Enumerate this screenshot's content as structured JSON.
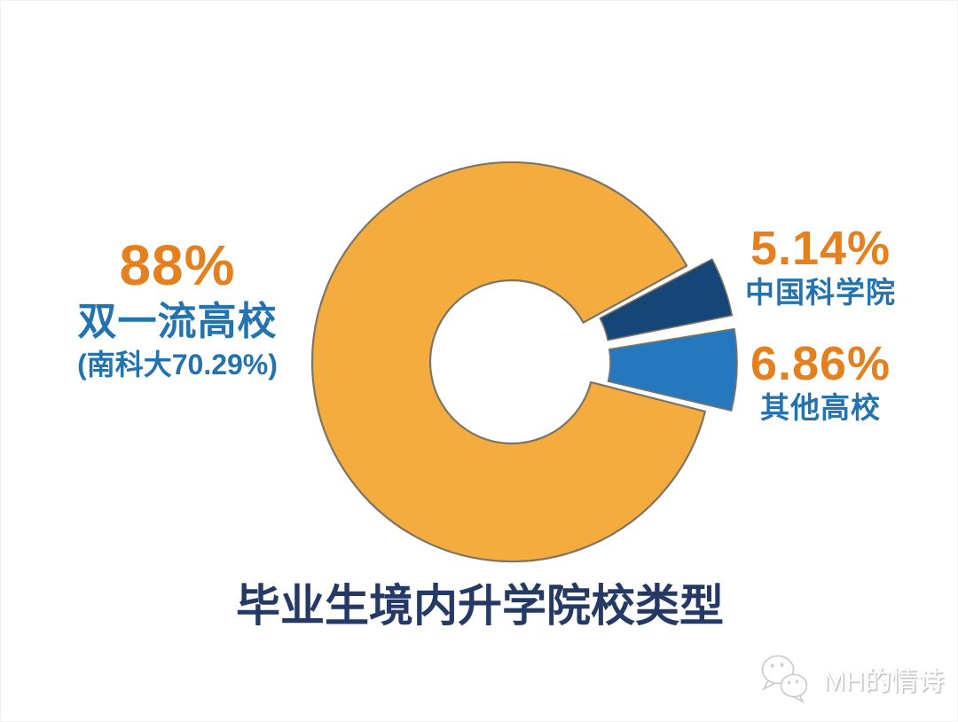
{
  "page": {
    "background": "#FFFFFF",
    "watermark": {
      "text": "MH的情诗",
      "icon": "wechat-logo-icon"
    }
  },
  "chart_data": {
    "type": "pie",
    "variant": "exploded-donut",
    "title": "毕业生境内升学院校类型",
    "title_color": "#243A64",
    "outline_color": "#7E7463",
    "hole_ratio": 0.41,
    "rotation_start_deg": 28.8,
    "direction": "clockwise",
    "legend_position": "none",
    "label_colors": {
      "percent": "#E5801F",
      "name": "#2273AE"
    },
    "slices": [
      {
        "name": "中国科学院",
        "value": 5.14,
        "pct_label": "5.14%",
        "color": "#164677",
        "exploded": true
      },
      {
        "name": "其他高校",
        "value": 6.86,
        "pct_label": "6.86%",
        "color": "#2678BE",
        "exploded": true
      },
      {
        "name": "双一流高校",
        "value": 88,
        "pct_label": "88%",
        "sublabel": "(南科大70.29%)",
        "color": "#F5AC3E",
        "exploded": false
      }
    ]
  }
}
